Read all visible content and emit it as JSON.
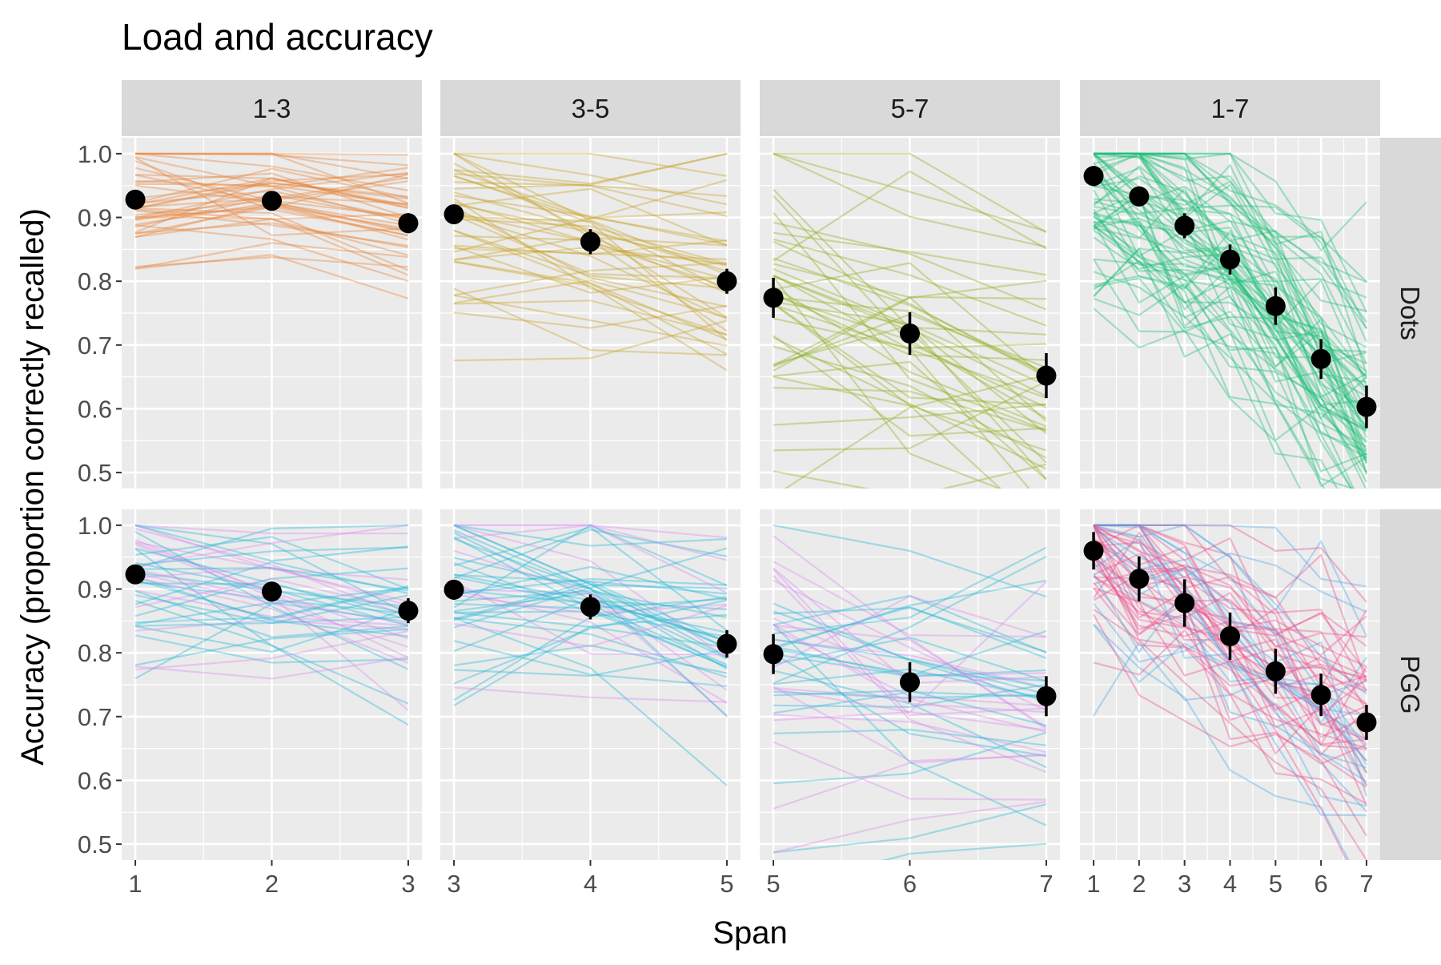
{
  "chart_data": {
    "type": "line",
    "title": "Load and accuracy",
    "xlabel": "Span",
    "ylabel": "Accuracy (proportion correctly recalled)",
    "ylim": [
      0.475,
      1.025
    ],
    "yticks": [
      "0.5",
      "0.6",
      "0.7",
      "0.8",
      "0.9",
      "1.0"
    ],
    "grid": true,
    "col_facets": [
      "1-3",
      "3-5",
      "5-7",
      "1-7"
    ],
    "row_facets": [
      "Dots",
      "PGG"
    ],
    "panels": [
      {
        "row": "Dots",
        "col": "1-3",
        "xlim": [
          0.9,
          3.1
        ],
        "xticks": [
          "1",
          "2",
          "3"
        ],
        "mean_points": [
          {
            "x": 1,
            "y": 0.928,
            "se": 0.006
          },
          {
            "x": 2,
            "y": 0.926,
            "se": 0.006
          },
          {
            "x": 3,
            "y": 0.891,
            "se": 0.008
          }
        ],
        "individual_lines": {
          "color": "#E8833A",
          "mean": [
            0.928,
            0.926,
            0.891
          ],
          "slope_spread": 0.05,
          "series": 42,
          "sd": 0.055
        }
      },
      {
        "row": "Dots",
        "col": "3-5",
        "xlim": [
          2.9,
          5.1
        ],
        "xticks": [
          "3",
          "4",
          "5"
        ],
        "mean_points": [
          {
            "x": 3,
            "y": 0.905,
            "se": 0.007
          },
          {
            "x": 4,
            "y": 0.862,
            "se": 0.01
          },
          {
            "x": 5,
            "y": 0.8,
            "se": 0.01
          }
        ],
        "individual_lines": {
          "color": "#C9A227",
          "mean": [
            0.905,
            0.862,
            0.8
          ],
          "slope_spread": 0.08,
          "series": 42,
          "sd": 0.09
        }
      },
      {
        "row": "Dots",
        "col": "5-7",
        "xlim": [
          4.9,
          7.1
        ],
        "xticks": [
          "5",
          "6",
          "7"
        ],
        "mean_points": [
          {
            "x": 5,
            "y": 0.774,
            "se": 0.016
          },
          {
            "x": 6,
            "y": 0.718,
            "se": 0.017
          },
          {
            "x": 7,
            "y": 0.652,
            "se": 0.018
          }
        ],
        "individual_lines": {
          "color": "#8FAF1E",
          "mean": [
            0.774,
            0.718,
            0.652
          ],
          "slope_spread": 0.12,
          "series": 42,
          "sd": 0.14
        }
      },
      {
        "row": "Dots",
        "col": "1-7",
        "xlim": [
          0.7,
          7.3
        ],
        "xticks": [
          "1",
          "2",
          "3",
          "4",
          "5",
          "6",
          "7"
        ],
        "mean_points": [
          {
            "x": 1,
            "y": 0.965,
            "se": 0.008
          },
          {
            "x": 2,
            "y": 0.933,
            "se": 0.008
          },
          {
            "x": 3,
            "y": 0.887,
            "se": 0.01
          },
          {
            "x": 4,
            "y": 0.834,
            "se": 0.012
          },
          {
            "x": 5,
            "y": 0.761,
            "se": 0.015
          },
          {
            "x": 6,
            "y": 0.678,
            "se": 0.016
          },
          {
            "x": 7,
            "y": 0.603,
            "se": 0.017
          }
        ],
        "individual_lines": {
          "color": "#1FBF7A",
          "mean": [
            0.965,
            0.933,
            0.887,
            0.834,
            0.761,
            0.678,
            0.603
          ],
          "slope_spread": 0.1,
          "series": 70,
          "sd": 0.12
        }
      },
      {
        "row": "PGG",
        "col": "1-3",
        "xlim": [
          0.9,
          3.1
        ],
        "xticks": [
          "1",
          "2",
          "3"
        ],
        "mean_points": [
          {
            "x": 1,
            "y": 0.923,
            "se": 0.007
          },
          {
            "x": 2,
            "y": 0.896,
            "se": 0.008
          },
          {
            "x": 3,
            "y": 0.866,
            "se": 0.01
          }
        ],
        "individual_lines": {
          "color": "#22B8D8",
          "alt_color": "#D98BF0",
          "mean": [
            0.923,
            0.896,
            0.866
          ],
          "slope_spread": 0.08,
          "series": 44,
          "sd": 0.075
        }
      },
      {
        "row": "PGG",
        "col": "3-5",
        "xlim": [
          2.9,
          5.1
        ],
        "xticks": [
          "3",
          "4",
          "5"
        ],
        "mean_points": [
          {
            "x": 3,
            "y": 0.899,
            "se": 0.008
          },
          {
            "x": 4,
            "y": 0.872,
            "se": 0.01
          },
          {
            "x": 5,
            "y": 0.814,
            "se": 0.011
          }
        ],
        "individual_lines": {
          "color": "#22B8D8",
          "alt_color": "#D98BF0",
          "mean": [
            0.899,
            0.872,
            0.814
          ],
          "slope_spread": 0.09,
          "series": 46,
          "sd": 0.095
        }
      },
      {
        "row": "PGG",
        "col": "5-7",
        "xlim": [
          4.9,
          7.1
        ],
        "xticks": [
          "5",
          "6",
          "7"
        ],
        "mean_points": [
          {
            "x": 5,
            "y": 0.798,
            "se": 0.016
          },
          {
            "x": 6,
            "y": 0.754,
            "se": 0.016
          },
          {
            "x": 7,
            "y": 0.732,
            "se": 0.016
          }
        ],
        "individual_lines": {
          "color": "#22B8D8",
          "alt_color": "#D98BF0",
          "mean": [
            0.798,
            0.754,
            0.732
          ],
          "slope_spread": 0.1,
          "series": 46,
          "sd": 0.12
        }
      },
      {
        "row": "PGG",
        "col": "1-7",
        "xlim": [
          0.7,
          7.3
        ],
        "xticks": [
          "1",
          "2",
          "3",
          "4",
          "5",
          "6",
          "7"
        ],
        "mean_points": [
          {
            "x": 1,
            "y": 0.96,
            "se": 0.015
          },
          {
            "x": 2,
            "y": 0.916,
            "se": 0.018
          },
          {
            "x": 3,
            "y": 0.878,
            "se": 0.019
          },
          {
            "x": 4,
            "y": 0.826,
            "se": 0.019
          },
          {
            "x": 5,
            "y": 0.771,
            "se": 0.018
          },
          {
            "x": 6,
            "y": 0.734,
            "se": 0.017
          },
          {
            "x": 7,
            "y": 0.691,
            "se": 0.014
          }
        ],
        "individual_lines": {
          "color": "#F0508E",
          "alt_color": "#4FA8E8",
          "mean": [
            0.96,
            0.916,
            0.878,
            0.826,
            0.771,
            0.734,
            0.691
          ],
          "slope_spread": 0.1,
          "series": 60,
          "sd": 0.12
        }
      }
    ]
  }
}
